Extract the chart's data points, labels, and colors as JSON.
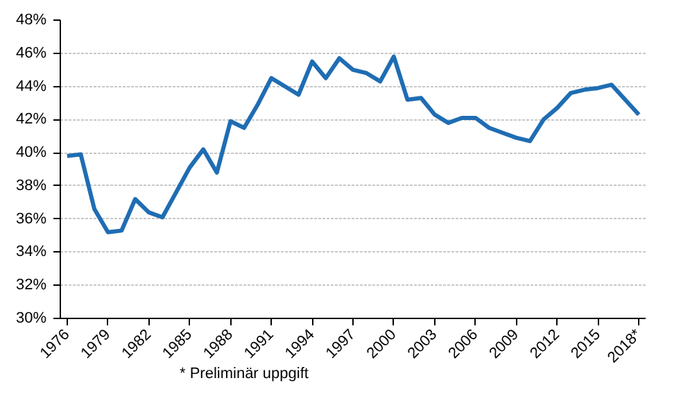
{
  "chart_data": {
    "type": "line",
    "categories": [
      "1976",
      null,
      null,
      "1979",
      null,
      null,
      "1982",
      null,
      null,
      "1985",
      null,
      null,
      "1988",
      null,
      null,
      "1991",
      null,
      null,
      "1994",
      null,
      null,
      "1997",
      null,
      null,
      "2000",
      null,
      null,
      "2003",
      null,
      null,
      "2006",
      null,
      null,
      "2009",
      null,
      null,
      "2012",
      null,
      null,
      "2015",
      null,
      null,
      "2018*"
    ],
    "series": [
      {
        "color": "#1f6db3",
        "values": [
          39.8,
          39.9,
          36.6,
          35.2,
          35.3,
          37.2,
          36.4,
          36.1,
          37.6,
          39.1,
          40.2,
          38.8,
          41.9,
          41.5,
          42.9,
          44.5,
          44.0,
          43.5,
          45.5,
          44.5,
          45.7,
          45.0,
          44.8,
          44.3,
          45.8,
          43.2,
          43.3,
          42.3,
          41.8,
          42.1,
          42.1,
          41.5,
          41.2,
          40.9,
          40.7,
          42.0,
          42.7,
          43.6,
          43.8,
          43.9,
          44.1,
          43.2,
          42.3
        ]
      }
    ],
    "ylim": [
      30,
      48
    ],
    "yticks": [
      {
        "value": 30,
        "label": "30%"
      },
      {
        "value": 32,
        "label": "32%"
      },
      {
        "value": 34,
        "label": "34%"
      },
      {
        "value": 36,
        "label": "36%"
      },
      {
        "value": 38,
        "label": "38%"
      },
      {
        "value": 40,
        "label": "40%"
      },
      {
        "value": 42,
        "label": "42%"
      },
      {
        "value": 44,
        "label": "44%"
      },
      {
        "value": 46,
        "label": "46%"
      },
      {
        "value": 48,
        "label": "48%"
      }
    ],
    "grid": "y",
    "annotations": [
      "* Preliminär uppgift"
    ]
  }
}
